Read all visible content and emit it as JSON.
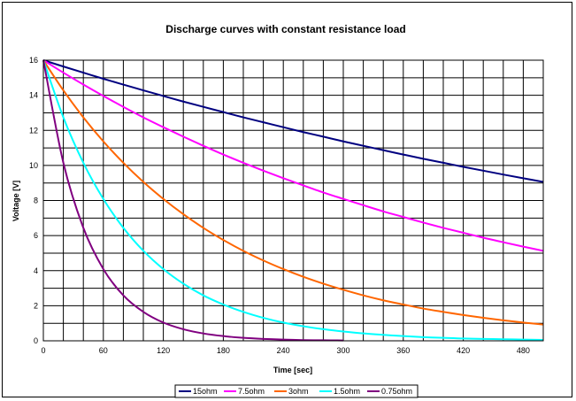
{
  "chart_data": {
    "type": "line",
    "title": "Discharge curves with constant resistance load",
    "xlabel": "Time [sec]",
    "ylabel": "Voltage [V]",
    "xlim": [
      0,
      500
    ],
    "ylim": [
      0,
      16
    ],
    "x_ticks": [
      "0",
      "60",
      "120",
      "180",
      "240",
      "300",
      "360",
      "420",
      "480"
    ],
    "y_ticks": [
      "0",
      "2",
      "4",
      "6",
      "8",
      "10",
      "12",
      "14",
      "16"
    ],
    "grid": true,
    "legend_position": "bottom",
    "x": [
      0,
      20,
      40,
      60,
      80,
      100,
      120,
      140,
      160,
      180,
      200,
      220,
      240,
      260,
      280,
      300,
      320,
      340,
      360,
      380,
      400,
      420,
      440,
      460,
      480,
      500
    ],
    "series": [
      {
        "name": "15ohm",
        "color": "#000080",
        "values": [
          16.0,
          15.64,
          15.29,
          14.94,
          14.61,
          14.28,
          13.96,
          13.64,
          13.34,
          13.04,
          12.74,
          12.46,
          12.18,
          11.9,
          11.64,
          11.37,
          11.12,
          10.87,
          10.62,
          10.38,
          10.15,
          9.92,
          9.7,
          9.48,
          9.27,
          9.06
        ]
      },
      {
        "name": "7.5ohm",
        "color": "#ff00ff",
        "values": [
          16.0,
          15.29,
          14.61,
          13.96,
          13.34,
          12.74,
          12.18,
          11.64,
          11.12,
          10.62,
          10.15,
          9.7,
          9.27,
          8.86,
          8.46,
          8.09,
          7.73,
          7.38,
          7.06,
          6.74,
          6.44,
          6.16,
          5.88,
          5.62,
          5.37,
          5.13
        ]
      },
      {
        "name": "3ohm",
        "color": "#ff6600",
        "values": [
          16.0,
          14.28,
          12.74,
          11.37,
          10.15,
          9.06,
          8.09,
          7.22,
          6.44,
          5.75,
          5.13,
          4.58,
          4.09,
          3.65,
          3.26,
          2.91,
          2.59,
          2.31,
          2.07,
          1.84,
          1.65,
          1.47,
          1.31,
          1.17,
          1.04,
          0.93
        ]
      },
      {
        "name": "1.5ohm",
        "color": "#00ffff",
        "values": [
          16.0,
          12.74,
          10.15,
          8.09,
          6.44,
          5.13,
          4.09,
          3.26,
          2.59,
          2.07,
          1.65,
          1.31,
          1.04,
          0.83,
          0.66,
          0.53,
          0.42,
          0.34,
          0.27,
          0.21,
          0.17,
          0.13,
          0.11,
          0.09,
          0.07,
          0.05
        ]
      },
      {
        "name": "0.75ohm",
        "color": "#800080",
        "values": [
          16.0,
          10.15,
          6.44,
          4.09,
          2.59,
          1.65,
          1.04,
          0.66,
          0.42,
          0.27,
          0.17,
          0.11,
          0.07,
          0.04,
          0.03,
          0.02,
          null,
          null,
          null,
          null,
          null,
          null,
          null,
          null,
          null,
          null
        ]
      }
    ]
  }
}
